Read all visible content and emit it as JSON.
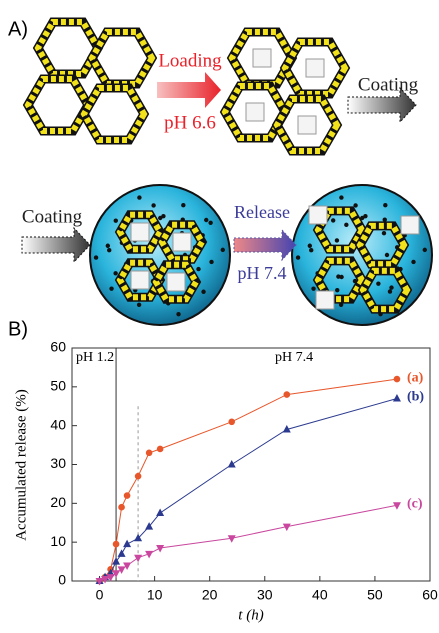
{
  "panel_a": {
    "label": "A)",
    "loading": "Loading",
    "loading_ph": "pH 6.6",
    "coating_1": "Coating",
    "coating_2": "Coating",
    "release": "Release",
    "release_ph": "pH 7.4"
  },
  "chart_data": {
    "type": "line",
    "panel_label": "B)",
    "x_label": "t (h)",
    "y_label": "Accumulated release (%)",
    "xlim": [
      -5,
      60
    ],
    "xticks": [
      0,
      10,
      20,
      30,
      40,
      50,
      60
    ],
    "ylim": [
      0,
      60
    ],
    "yticks": [
      0,
      10,
      20,
      30,
      40,
      50,
      60
    ],
    "vlines": [
      {
        "x": 3,
        "style": "solid"
      },
      {
        "x": 7,
        "style": "dashed"
      }
    ],
    "annotations": [
      "pH 1.2",
      "pH 7.4"
    ],
    "series": [
      {
        "name": "(a)",
        "color": "#e8572b",
        "marker": "circle",
        "x": [
          0,
          1,
          2,
          3,
          4,
          5,
          7,
          9,
          11,
          24,
          34,
          54
        ],
        "values": [
          0,
          1,
          3,
          9.5,
          19,
          22,
          27,
          33,
          34,
          41,
          48,
          52
        ]
      },
      {
        "name": "(b)",
        "color": "#2b3a8f",
        "marker": "triangle-up",
        "x": [
          0,
          1,
          2,
          3,
          4,
          5,
          7,
          9,
          11,
          24,
          34,
          54
        ],
        "values": [
          0,
          1,
          2,
          5,
          7,
          9.5,
          11,
          14,
          17.5,
          30,
          39,
          47
        ]
      },
      {
        "name": "(c)",
        "color": "#c9479e",
        "marker": "triangle-down",
        "x": [
          0,
          1,
          2,
          3,
          4,
          5,
          7,
          9,
          11,
          24,
          34,
          54
        ],
        "values": [
          0,
          0.5,
          1,
          2,
          3,
          4,
          6,
          7,
          8.5,
          11,
          14,
          19.5
        ]
      }
    ]
  }
}
